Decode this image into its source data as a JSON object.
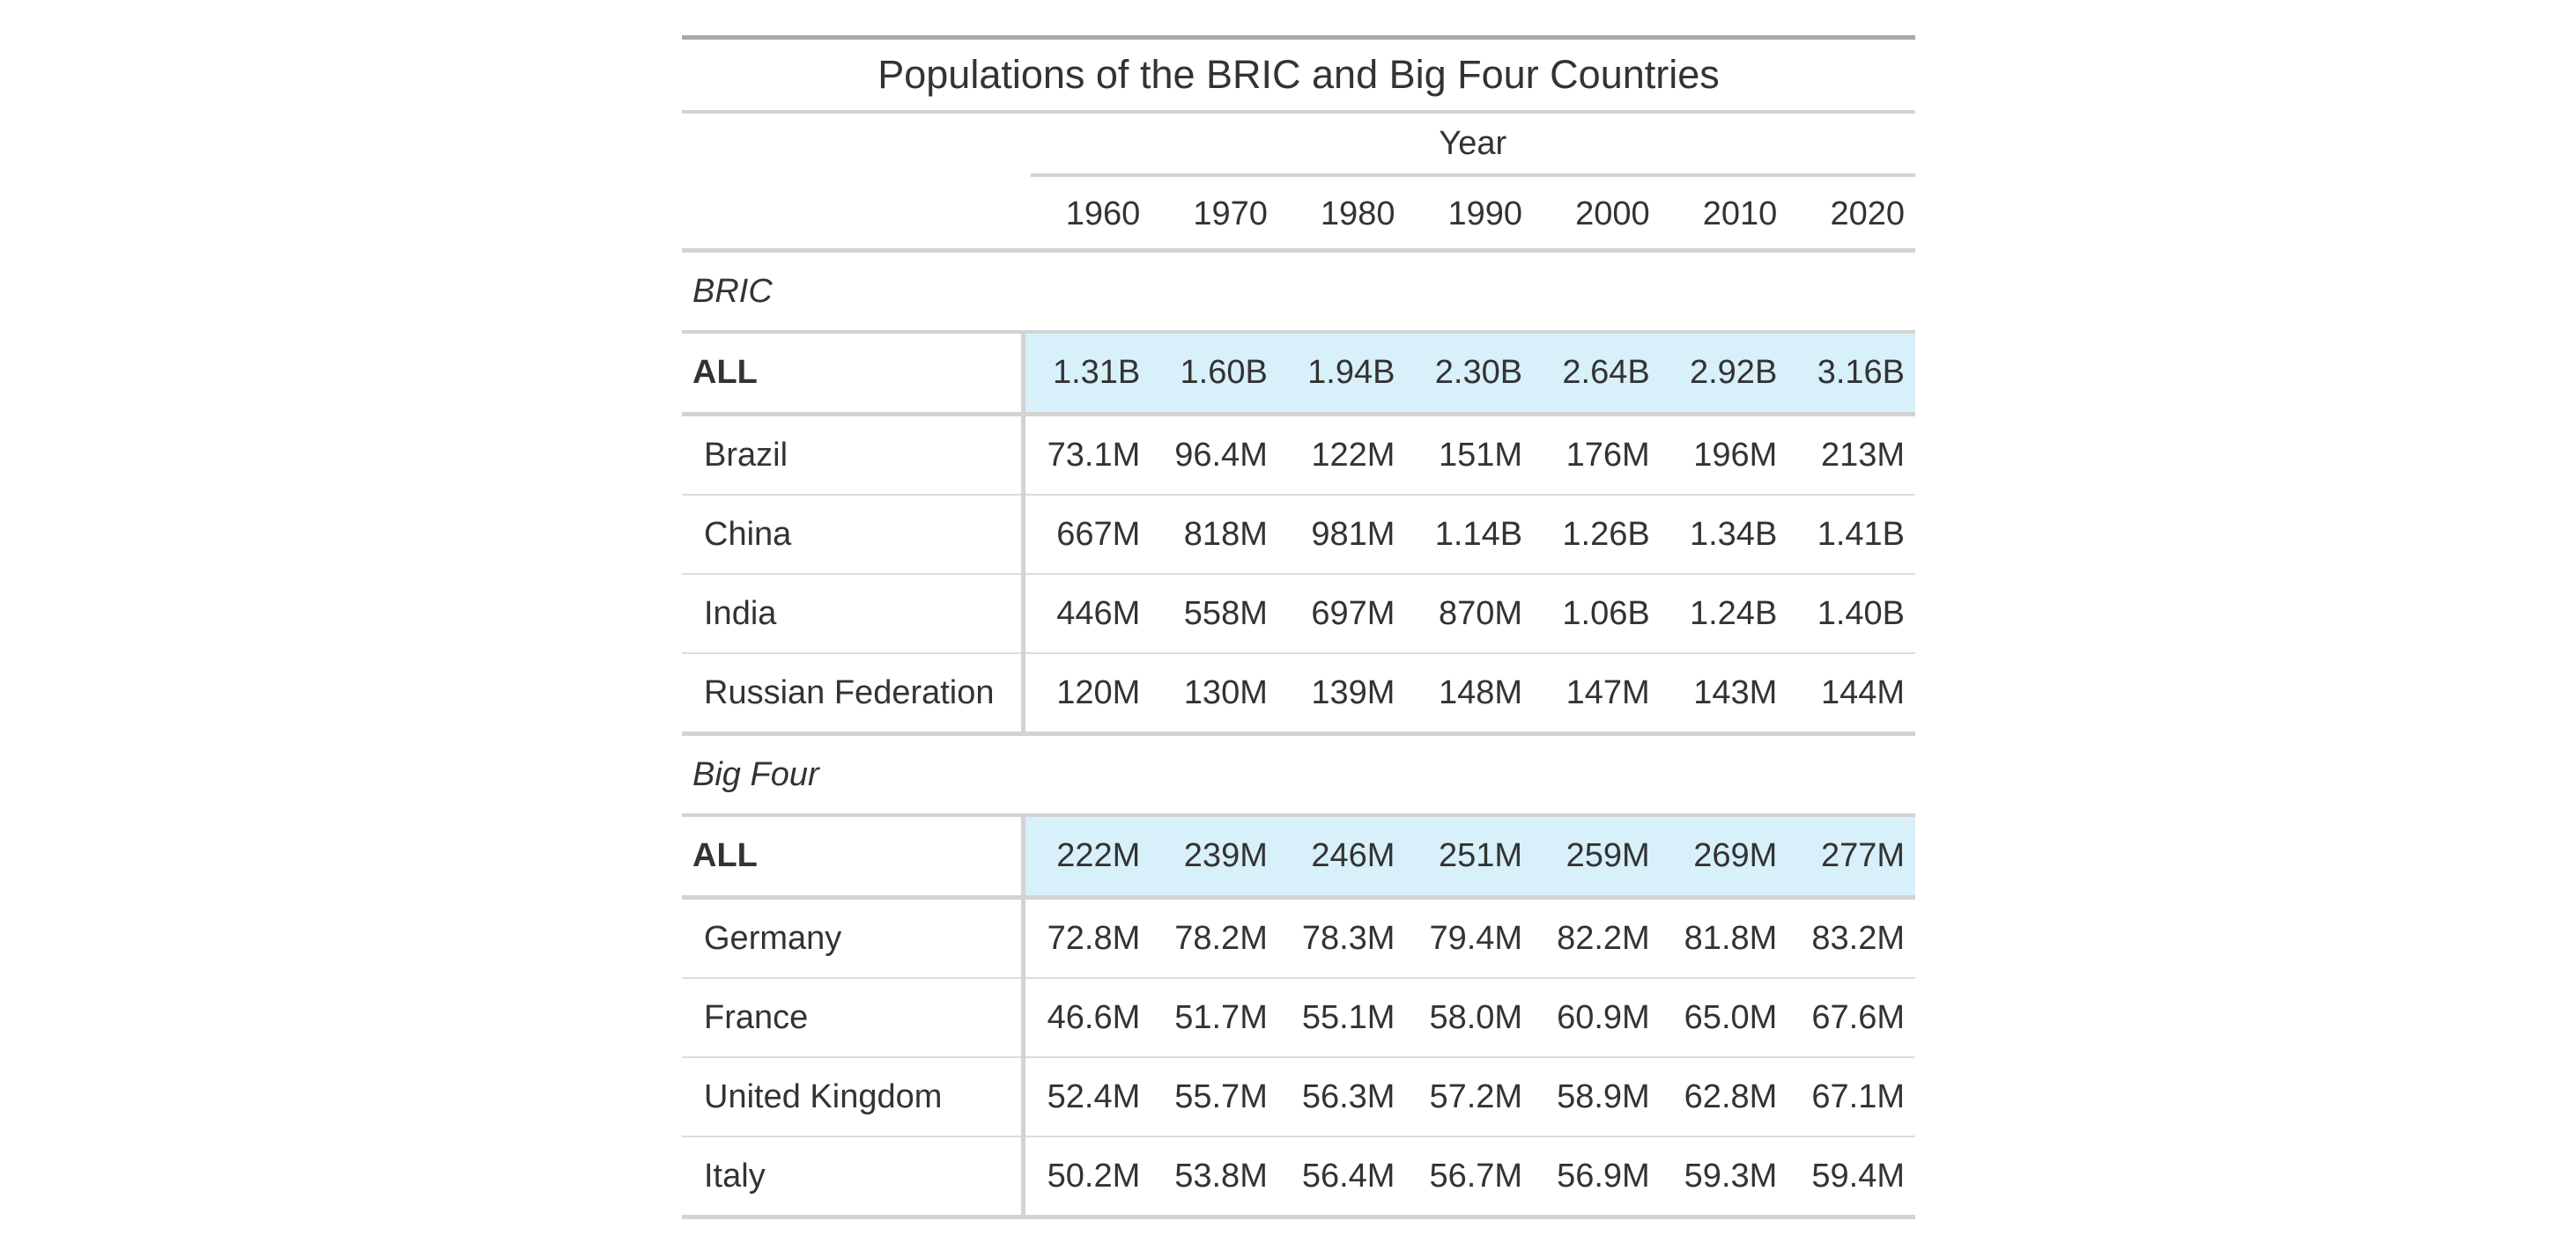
{
  "table": {
    "title": "Populations of the BRIC and Big Four Countries",
    "spanner": "Year",
    "years": [
      "1960",
      "1970",
      "1980",
      "1990",
      "2000",
      "2010",
      "2020"
    ],
    "groups": [
      {
        "label": "BRIC",
        "summary_label": "ALL",
        "summary_values": [
          "1.31B",
          "1.60B",
          "1.94B",
          "2.30B",
          "2.64B",
          "2.92B",
          "3.16B"
        ],
        "rows": [
          {
            "country": "Brazil",
            "values": [
              "73.1M",
              "96.4M",
              "122M",
              "151M",
              "176M",
              "196M",
              "213M"
            ]
          },
          {
            "country": "China",
            "values": [
              "667M",
              "818M",
              "981M",
              "1.14B",
              "1.26B",
              "1.34B",
              "1.41B"
            ]
          },
          {
            "country": "India",
            "values": [
              "446M",
              "558M",
              "697M",
              "870M",
              "1.06B",
              "1.24B",
              "1.40B"
            ]
          },
          {
            "country": "Russian Federation",
            "values": [
              "120M",
              "130M",
              "139M",
              "148M",
              "147M",
              "143M",
              "144M"
            ]
          }
        ]
      },
      {
        "label": "Big Four",
        "summary_label": "ALL",
        "summary_values": [
          "222M",
          "239M",
          "246M",
          "251M",
          "259M",
          "269M",
          "277M"
        ],
        "rows": [
          {
            "country": "Germany",
            "values": [
              "72.8M",
              "78.2M",
              "78.3M",
              "79.4M",
              "82.2M",
              "81.8M",
              "83.2M"
            ]
          },
          {
            "country": "France",
            "values": [
              "46.6M",
              "51.7M",
              "55.1M",
              "58.0M",
              "60.9M",
              "65.0M",
              "67.6M"
            ]
          },
          {
            "country": "United Kingdom",
            "values": [
              "52.4M",
              "55.7M",
              "56.3M",
              "57.2M",
              "58.9M",
              "62.8M",
              "67.1M"
            ]
          },
          {
            "country": "Italy",
            "values": [
              "50.2M",
              "53.8M",
              "56.4M",
              "56.7M",
              "56.9M",
              "59.3M",
              "59.4M"
            ]
          }
        ]
      }
    ],
    "colors": {
      "summary_highlight": "#d7f0fa",
      "rule": "#d3d3d3",
      "top_rule": "#a8a8a8",
      "text": "#333333"
    }
  }
}
